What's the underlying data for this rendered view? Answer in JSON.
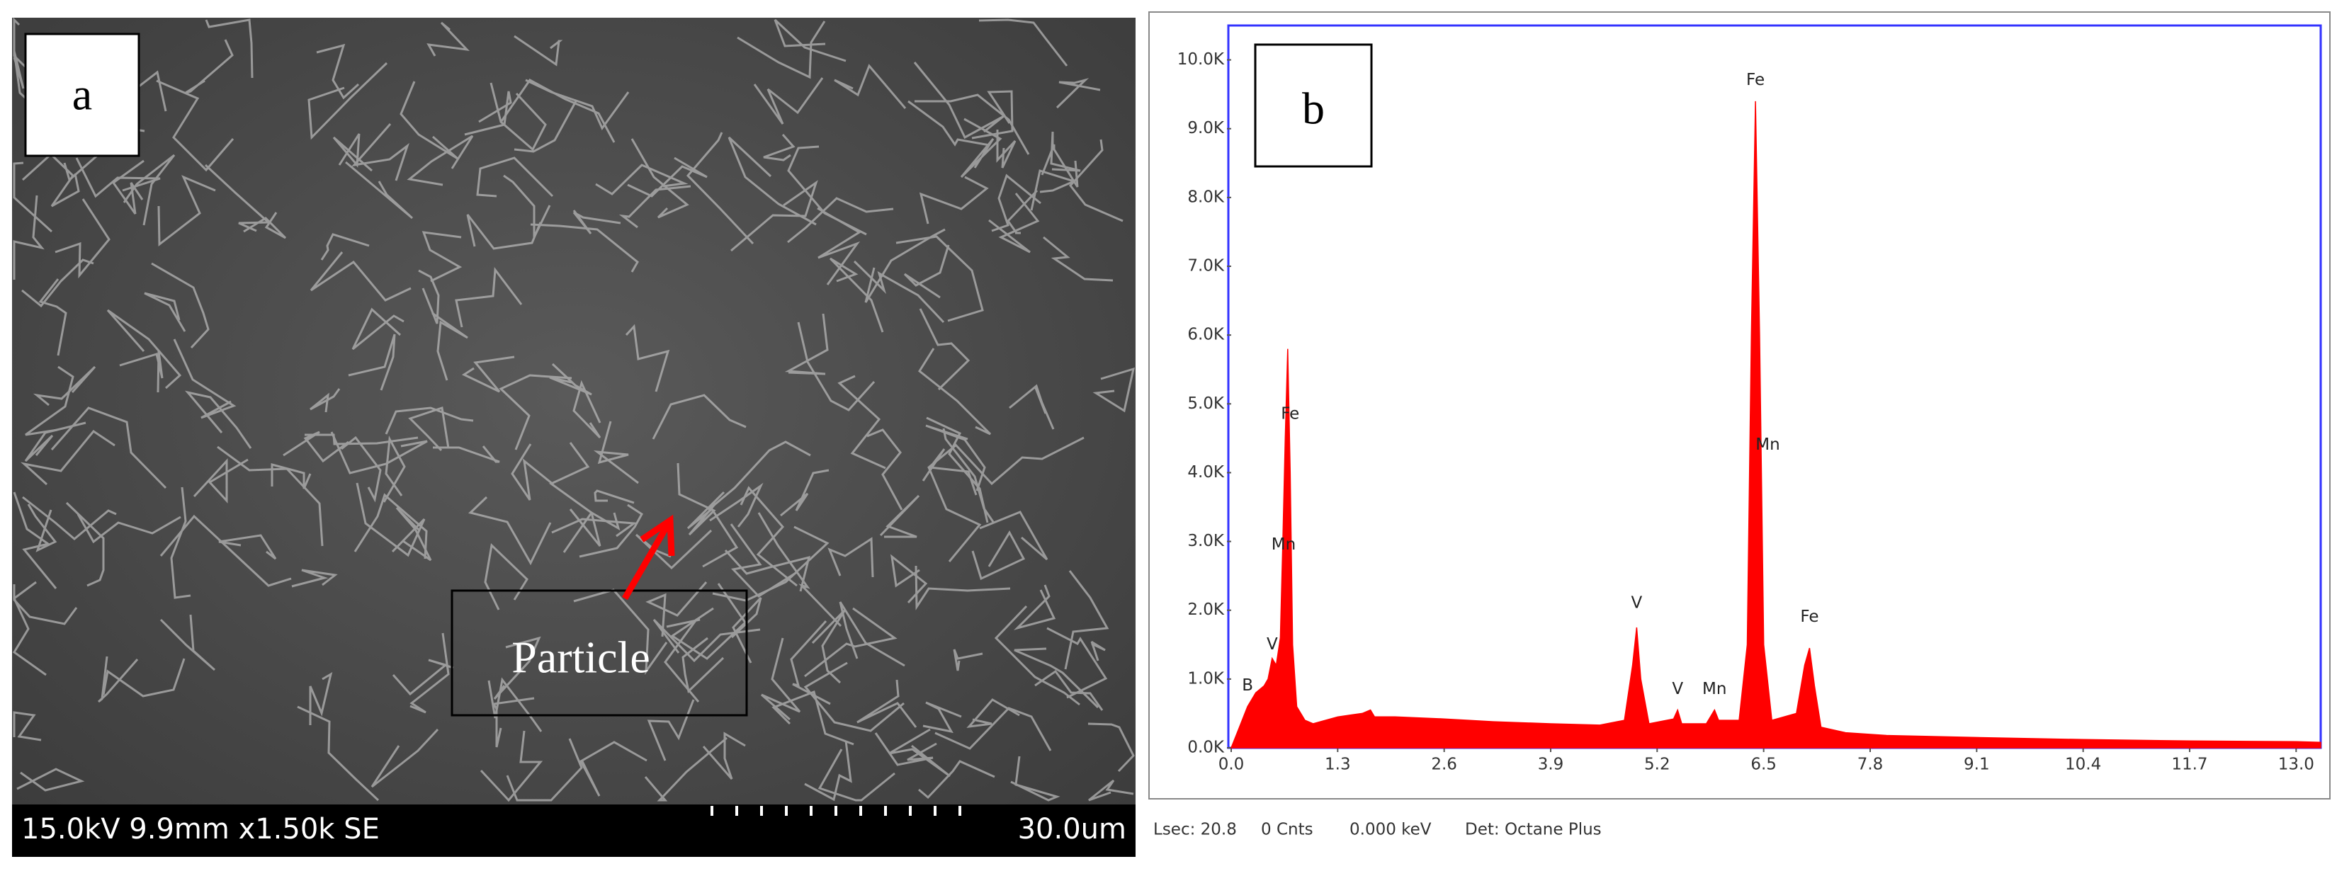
{
  "panel_a": {
    "label": "a",
    "info": "15.0kV 9.9mm x1.50k SE",
    "scale": "30.0um",
    "box_label": "Particle"
  },
  "chart_data": {
    "type": "area",
    "panel_label": "b",
    "color": "#ff0000",
    "x": [
      0.0,
      0.1,
      0.2,
      0.3,
      0.4,
      0.45,
      0.5,
      0.55,
      0.6,
      0.63,
      0.66,
      0.69,
      0.72,
      0.75,
      0.8,
      0.9,
      1.0,
      1.3,
      1.6,
      1.7,
      1.75,
      2.0,
      2.6,
      3.2,
      3.9,
      4.5,
      4.8,
      4.9,
      4.95,
      5.0,
      5.1,
      5.4,
      5.45,
      5.5,
      5.8,
      5.9,
      5.95,
      6.2,
      6.3,
      6.35,
      6.4,
      6.45,
      6.5,
      6.6,
      6.9,
      7.0,
      7.06,
      7.12,
      7.2,
      7.5,
      8.0,
      9.1,
      10.4,
      11.7,
      13.0,
      13.3
    ],
    "values": [
      0,
      300,
      600,
      800,
      900,
      1000,
      1300,
      1200,
      1600,
      3000,
      4500,
      5800,
      4000,
      1500,
      600,
      400,
      350,
      450,
      500,
      550,
      450,
      450,
      420,
      380,
      350,
      330,
      400,
      1200,
      1750,
      1000,
      350,
      420,
      550,
      350,
      350,
      550,
      400,
      400,
      1500,
      6000,
      9400,
      6000,
      1500,
      400,
      500,
      1200,
      1450,
      900,
      300,
      220,
      180,
      150,
      120,
      100,
      90,
      80
    ],
    "xlim": [
      0,
      13.3
    ],
    "ylim": [
      0,
      10500
    ],
    "xticks": [
      {
        "value": 0,
        "label": "0.0"
      },
      1.3,
      2.6,
      3.9,
      5.2,
      6.5,
      7.8,
      9.1,
      10.4,
      11.7,
      {
        "value": 13,
        "label": "13.0"
      }
    ],
    "yticks": [
      {
        "value": 0,
        "label": "0.0K"
      },
      {
        "value": 1000,
        "label": "1.0K"
      },
      {
        "value": 2000,
        "label": "2.0K"
      },
      {
        "value": 3000,
        "label": "3.0K"
      },
      {
        "value": 4000,
        "label": "4.0K"
      },
      {
        "value": 5000,
        "label": "5.0K"
      },
      {
        "value": 6000,
        "label": "6.0K"
      },
      {
        "value": 7000,
        "label": "7.0K"
      },
      {
        "value": 8000,
        "label": "8.0K"
      },
      {
        "value": 9000,
        "label": "9.0K"
      },
      {
        "value": 10000,
        "label": "10.0K"
      }
    ],
    "annotations": [
      {
        "text": "B",
        "x": 0.2,
        "y": 900
      },
      {
        "text": "V",
        "x": 0.5,
        "y": 1500
      },
      {
        "text": "Mn",
        "x": 0.64,
        "y": 2950
      },
      {
        "text": "Fe",
        "x": 0.72,
        "y": 4850
      },
      {
        "text": "V",
        "x": 4.95,
        "y": 2100
      },
      {
        "text": "V",
        "x": 5.45,
        "y": 850
      },
      {
        "text": "Mn",
        "x": 5.9,
        "y": 850
      },
      {
        "text": "Fe",
        "x": 6.4,
        "y": 9700
      },
      {
        "text": "Mn",
        "x": 6.55,
        "y": 4400
      },
      {
        "text": "Fe",
        "x": 7.06,
        "y": 1900
      }
    ],
    "footer": [
      "Lsec: 20.8",
      "0 Cnts",
      "0.000 keV",
      "Det: Octane Plus"
    ]
  }
}
